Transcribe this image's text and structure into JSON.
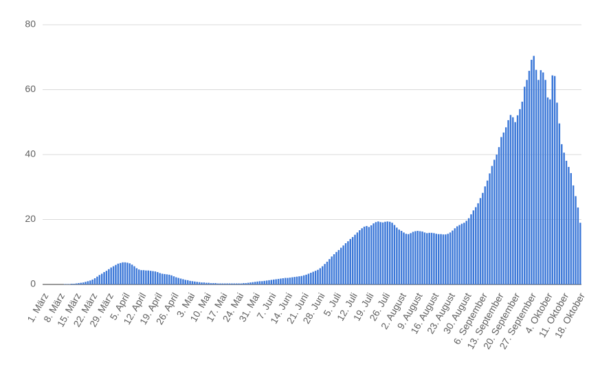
{
  "chart_data": {
    "type": "bar",
    "color": "#3c78d8",
    "grid": true,
    "ylim": [
      0,
      80
    ],
    "yticks": [
      0,
      20,
      40,
      60,
      80
    ],
    "categories": [
      "1. März",
      null,
      null,
      null,
      null,
      null,
      null,
      "8. März",
      null,
      null,
      null,
      null,
      null,
      null,
      "15. März",
      null,
      null,
      null,
      null,
      null,
      null,
      "22. März",
      null,
      null,
      null,
      null,
      null,
      null,
      "29. März",
      null,
      null,
      null,
      null,
      null,
      null,
      "5. April",
      null,
      null,
      null,
      null,
      null,
      null,
      "12. April",
      null,
      null,
      null,
      null,
      null,
      null,
      "19. April",
      null,
      null,
      null,
      null,
      null,
      null,
      "26. April",
      null,
      null,
      null,
      null,
      null,
      null,
      "3. Mai",
      null,
      null,
      null,
      null,
      null,
      null,
      "10. Mai",
      null,
      null,
      null,
      null,
      null,
      null,
      "17. Mai",
      null,
      null,
      null,
      null,
      null,
      null,
      "24. Mai",
      null,
      null,
      null,
      null,
      null,
      null,
      "31. Mai",
      null,
      null,
      null,
      null,
      null,
      null,
      "7. Juni",
      null,
      null,
      null,
      null,
      null,
      null,
      "14. Juni",
      null,
      null,
      null,
      null,
      null,
      null,
      "21. Juni",
      null,
      null,
      null,
      null,
      null,
      null,
      "28. Juni",
      null,
      null,
      null,
      null,
      null,
      null,
      "5. Juli",
      null,
      null,
      null,
      null,
      null,
      null,
      "12. Juli",
      null,
      null,
      null,
      null,
      null,
      null,
      "19. Juli",
      null,
      null,
      null,
      null,
      null,
      null,
      "26. Juli",
      null,
      null,
      null,
      null,
      null,
      null,
      "2. August",
      null,
      null,
      null,
      null,
      null,
      null,
      "9. August",
      null,
      null,
      null,
      null,
      null,
      null,
      "16. August",
      null,
      null,
      null,
      null,
      null,
      null,
      "23. August",
      null,
      null,
      null,
      null,
      null,
      null,
      "30. August",
      null,
      null,
      null,
      null,
      null,
      null,
      "6. September",
      null,
      null,
      null,
      null,
      null,
      null,
      "13. September",
      null,
      null,
      null,
      null,
      null,
      null,
      "20. September",
      null,
      null,
      null,
      null,
      null,
      null,
      "27. September",
      null,
      null,
      null,
      null,
      null,
      null,
      "4. Oktober",
      null,
      null,
      null,
      null,
      null,
      null,
      "11. Oktober",
      null,
      null,
      null,
      null,
      null,
      null,
      "18. Oktober"
    ],
    "values": [
      0,
      0,
      0,
      0,
      0,
      0,
      0,
      0,
      0,
      0.1,
      0.1,
      0.1,
      0.2,
      0.2,
      0.3,
      0.4,
      0.5,
      0.6,
      0.8,
      1.0,
      1.2,
      1.5,
      1.9,
      2.4,
      2.9,
      3.3,
      3.8,
      4.2,
      4.7,
      5.2,
      5.6,
      6.0,
      6.4,
      6.6,
      6.8,
      6.8,
      6.7,
      6.5,
      6.1,
      5.6,
      5.0,
      4.6,
      4.4,
      4.4,
      4.3,
      4.3,
      4.2,
      4.1,
      4.0,
      3.8,
      3.5,
      3.3,
      3.2,
      3.1,
      3.0,
      2.8,
      2.5,
      2.2,
      2.0,
      1.8,
      1.6,
      1.4,
      1.3,
      1.1,
      1.0,
      0.9,
      0.8,
      0.7,
      0.6,
      0.6,
      0.5,
      0.5,
      0.4,
      0.4,
      0.4,
      0.3,
      0.3,
      0.3,
      0.3,
      0.3,
      0.3,
      0.3,
      0.3,
      0.3,
      0.3,
      0.3,
      0.4,
      0.4,
      0.5,
      0.6,
      0.7,
      0.8,
      0.9,
      1.0,
      1.0,
      1.1,
      1.2,
      1.3,
      1.4,
      1.5,
      1.6,
      1.7,
      1.8,
      1.9,
      2.0,
      2.0,
      2.1,
      2.2,
      2.3,
      2.4,
      2.5,
      2.6,
      2.8,
      3.0,
      3.3,
      3.6,
      3.9,
      4.2,
      4.5,
      5.0,
      5.6,
      6.3,
      7.0,
      7.8,
      8.6,
      9.3,
      10.0,
      10.6,
      11.3,
      12.0,
      12.7,
      13.3,
      14.0,
      14.6,
      15.3,
      16.0,
      16.7,
      17.3,
      17.8,
      18.0,
      17.7,
      18.2,
      18.8,
      19.2,
      19.4,
      19.2,
      19.1,
      19.3,
      19.4,
      19.3,
      19.0,
      18.3,
      17.5,
      16.9,
      16.5,
      16.0,
      15.6,
      15.5,
      15.8,
      16.2,
      16.4,
      16.5,
      16.4,
      16.3,
      16.0,
      15.8,
      15.9,
      15.9,
      15.8,
      15.6,
      15.5,
      15.5,
      15.4,
      15.4,
      15.6,
      16.0,
      16.6,
      17.3,
      17.9,
      18.3,
      18.7,
      19.0,
      19.6,
      20.4,
      21.6,
      22.8,
      23.8,
      25.0,
      26.6,
      28.2,
      30.2,
      32.0,
      34.2,
      36.5,
      38.4,
      40.0,
      42.3,
      45.4,
      46.8,
      48.4,
      50.6,
      52.2,
      51.5,
      50.0,
      52.1,
      54.0,
      56.3,
      60.9,
      63.0,
      65.8,
      69.2,
      70.4,
      66.1,
      63.0,
      66.0,
      65.3,
      63.0,
      57.6,
      57.0,
      64.4,
      64.2,
      56.0,
      49.6,
      43.2,
      40.6,
      38.1,
      36.2,
      34.3,
      30.5,
      27.2,
      23.7,
      19.0
    ]
  }
}
